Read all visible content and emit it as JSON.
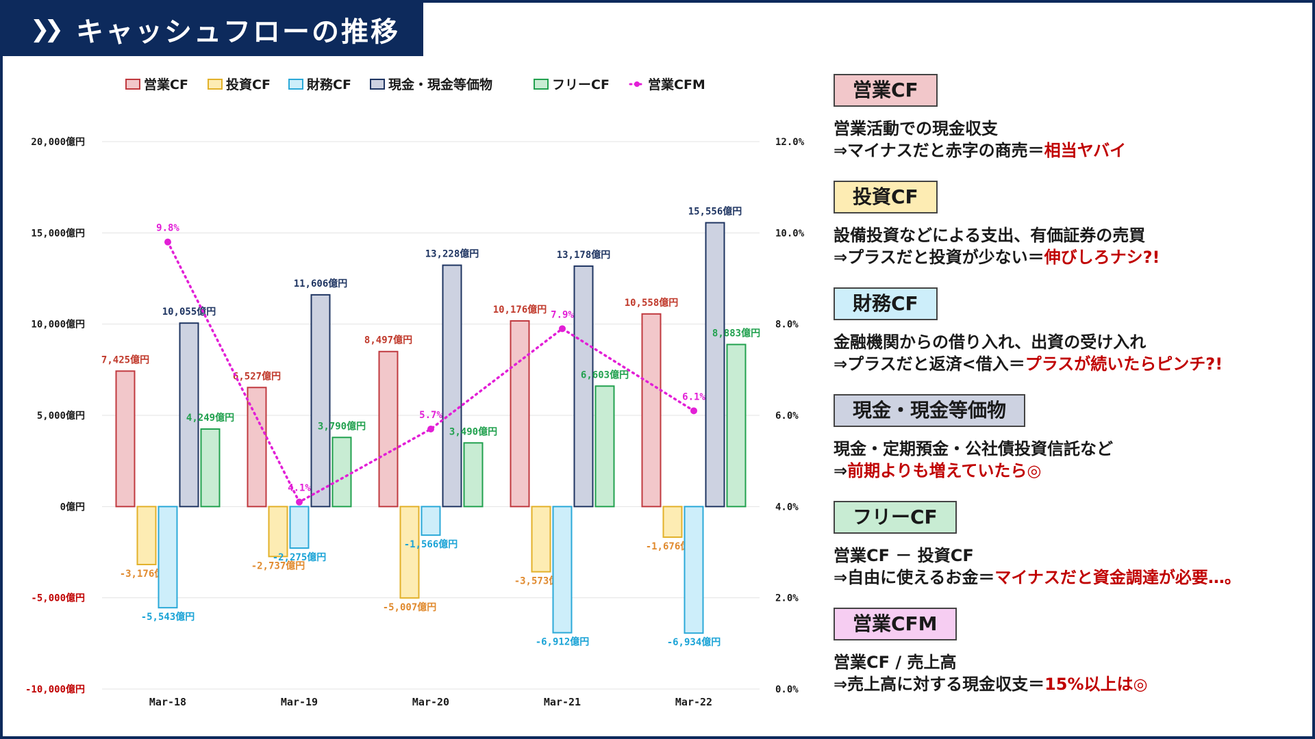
{
  "title": "キャッシュフローの推移",
  "title_icon": "double-chevron-right-icon",
  "colors": {
    "navy": "#0d2a5c",
    "op_fill": "#f2c7ca",
    "op_stroke": "#c0393f",
    "inv_fill": "#fdecb3",
    "inv_stroke": "#e2b12a",
    "fin_fill": "#cdeefa",
    "fin_stroke": "#2ba9d8",
    "cash_fill": "#cdd2e1",
    "cash_stroke": "#1f3562",
    "free_fill": "#c8ecd3",
    "free_stroke": "#22a14f",
    "cfm": "#e21fd6",
    "op_label": "#c0392b",
    "inv_label": "#e08a2e",
    "fin_label": "#1aa3d6",
    "cash_label": "#1f3562",
    "free_label": "#22a14f",
    "neg_axis": "#c00000"
  },
  "chart_data": {
    "type": "bar",
    "categories": [
      "Mar-18",
      "Mar-19",
      "Mar-20",
      "Mar-21",
      "Mar-22"
    ],
    "series": [
      {
        "name": "営業CF",
        "values": [
          7425,
          6527,
          8497,
          10176,
          10558
        ],
        "labels": [
          "7,425億円",
          "6,527億円",
          "8,497億円",
          "10,176億円",
          "10,558億円"
        ]
      },
      {
        "name": "投資CF",
        "values": [
          -3176,
          -2737,
          -5007,
          -3573,
          -1676
        ],
        "labels": [
          "-3,176億円",
          "-2,737億円",
          "-5,007億円",
          "-3,573億円",
          "-1,676億円"
        ]
      },
      {
        "name": "財務CF",
        "values": [
          -5543,
          -2275,
          -1566,
          -6912,
          -6934
        ],
        "labels": [
          "-5,543億円",
          "-2,275億円",
          "-1,566億円",
          "-6,912億円",
          "-6,934億円"
        ]
      },
      {
        "name": "現金・現金等価物",
        "values": [
          10055,
          11606,
          13228,
          13178,
          15556
        ],
        "labels": [
          "10,055億円",
          "11,606億円",
          "13,228億円",
          "13,178億円",
          "15,556億円"
        ]
      },
      {
        "name": "フリーCF",
        "values": [
          4249,
          3790,
          3490,
          6603,
          8883
        ],
        "labels": [
          "4,249億円",
          "3,790億円",
          "3,490億円",
          "6,603億円",
          "8,883億円"
        ]
      },
      {
        "name": "営業CFM",
        "type": "line",
        "axis": "right",
        "values": [
          9.8,
          4.1,
          5.7,
          7.9,
          6.1
        ],
        "labels": [
          "9.8%",
          "4.1%",
          "5.7%",
          "7.9%",
          "6.1%"
        ]
      }
    ],
    "y_left": {
      "min": -10000,
      "max": 20000,
      "ticks": [
        -10000,
        -5000,
        0,
        5000,
        10000,
        15000,
        20000
      ],
      "tick_labels": [
        "-10,000億円",
        "-5,000億円",
        "0億円",
        "5,000億円",
        "10,000億円",
        "15,000億円",
        "20,000億円"
      ]
    },
    "y_right": {
      "min": 0,
      "max": 12,
      "ticks": [
        0,
        2,
        4,
        6,
        8,
        10,
        12
      ],
      "tick_labels": [
        "0.0%",
        "2.0%",
        "4.0%",
        "6.0%",
        "8.0%",
        "10.0%",
        "12.0%"
      ]
    },
    "grid": true,
    "legend_position": "top"
  },
  "explanations": [
    {
      "head": "営業CF",
      "fill": "#f2c7ca",
      "line1": "営業活動での現金収支",
      "line2_prefix": "⇒マイナスだと赤字の商売＝",
      "line2_red": "相当ヤバイ"
    },
    {
      "head": "投資CF",
      "fill": "#fdecb3",
      "line1": "設備投資などによる支出、有価証券の売買",
      "line2_prefix": "⇒プラスだと投資が少ない＝",
      "line2_red": "伸びしろナシ?!"
    },
    {
      "head": "財務CF",
      "fill": "#cdeefa",
      "line1": "金融機関からの借り入れ、出資の受け入れ",
      "line2_prefix": "⇒プラスだと返済<借入＝",
      "line2_red": "プラスが続いたらピンチ?!"
    },
    {
      "head": "現金・現金等価物",
      "fill": "#cdd2e1",
      "line1": "現金・定期預金・公社債投資信託など",
      "line2_prefix": "⇒",
      "line2_red": "前期よりも増えていたら◎"
    },
    {
      "head": "フリーCF",
      "fill": "#c8ecd3",
      "line1": "営業CF － 投資CF",
      "line2_prefix": "⇒自由に使えるお金＝",
      "line2_red": "マイナスだと資金調達が必要…。"
    },
    {
      "head": "営業CFM",
      "fill": "#f6cdf2",
      "line1": "営業CF / 売上高",
      "line2_prefix": "⇒売上高に対する現金収支＝",
      "line2_red": "15%以上は◎"
    }
  ]
}
